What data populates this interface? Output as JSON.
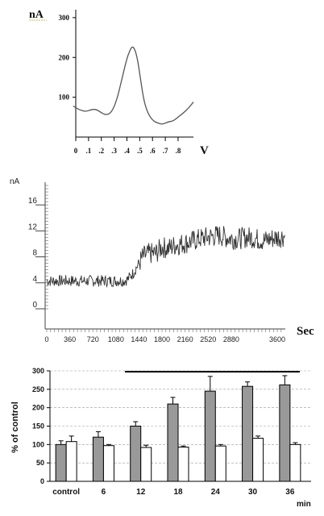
{
  "chart_data": [
    {
      "type": "line",
      "title": "",
      "ylabel": "nA",
      "xlabel": "V",
      "x_ticks": [
        "0",
        ".1",
        ".2",
        ".3",
        ".4",
        ".5",
        ".6",
        ".7",
        ".8"
      ],
      "y_ticks": [
        "100",
        "200",
        "300"
      ],
      "xlim": [
        0,
        0.92
      ],
      "ylim": [
        0,
        320
      ],
      "grid": false,
      "series": [
        {
          "x": [
            -0.02,
            0.03,
            0.08,
            0.12,
            0.16,
            0.2,
            0.24,
            0.28,
            0.32,
            0.36,
            0.4,
            0.42,
            0.44,
            0.46,
            0.48,
            0.5,
            0.53,
            0.56,
            0.6,
            0.64,
            0.68,
            0.72,
            0.76,
            0.8,
            0.84,
            0.88,
            0.92
          ],
          "y": [
            78,
            68,
            64,
            69,
            70,
            61,
            55,
            62,
            92,
            145,
            198,
            215,
            228,
            222,
            200,
            160,
            95,
            62,
            42,
            35,
            32,
            38,
            40,
            50,
            60,
            72,
            88
          ]
        }
      ]
    },
    {
      "type": "line",
      "title": "",
      "ylabel": "nA",
      "xlabel": "Sec",
      "x_ticks": [
        "0",
        "360",
        "720",
        "1080",
        "1440",
        "1800",
        "2160",
        "2520",
        "2880",
        "3600"
      ],
      "y_ticks": [
        "0",
        "4",
        "8",
        "12",
        "16"
      ],
      "xlim": [
        0,
        3700
      ],
      "ylim": [
        0,
        19
      ],
      "grid": false,
      "series": [
        {
          "x": [
            0,
            1200,
            1260,
            1350,
            1440,
            1500,
            1600,
            1700,
            1800,
            1900,
            2000,
            2100,
            2200,
            2300,
            2400,
            2500,
            2600,
            2700,
            2800,
            2900,
            3000,
            3100,
            3200,
            3300,
            3400,
            3500,
            3600,
            3720
          ],
          "y": [
            4.3,
            4.3,
            4.5,
            5.5,
            7.0,
            8.0,
            8.5,
            8.5,
            9.5,
            9.3,
            9.8,
            10.0,
            10.2,
            10.5,
            10.8,
            11.0,
            11.2,
            11.3,
            11.0,
            10.8,
            10.8,
            11.0,
            11.0,
            10.7,
            10.5,
            10.8,
            11.0,
            11.2
          ]
        }
      ]
    },
    {
      "type": "bar",
      "title": "",
      "ylabel": "% of control",
      "xlabel": "min",
      "categories": [
        "control",
        "6",
        "12",
        "18",
        "24",
        "30",
        "36"
      ],
      "y_ticks": [
        "0",
        "50",
        "100",
        "150",
        "200",
        "250",
        "300"
      ],
      "ylim": [
        0,
        300
      ],
      "grid": true,
      "series": [
        {
          "color": "#999999",
          "values": [
            100,
            120,
            150,
            210,
            245,
            258,
            262
          ],
          "errors": [
            10,
            15,
            12,
            18,
            40,
            12,
            25
          ]
        },
        {
          "color": "#ffffff",
          "values": [
            108,
            97,
            92,
            93,
            96,
            117,
            100
          ],
          "errors": [
            15,
            3,
            6,
            3,
            4,
            6,
            5
          ]
        }
      ]
    }
  ]
}
